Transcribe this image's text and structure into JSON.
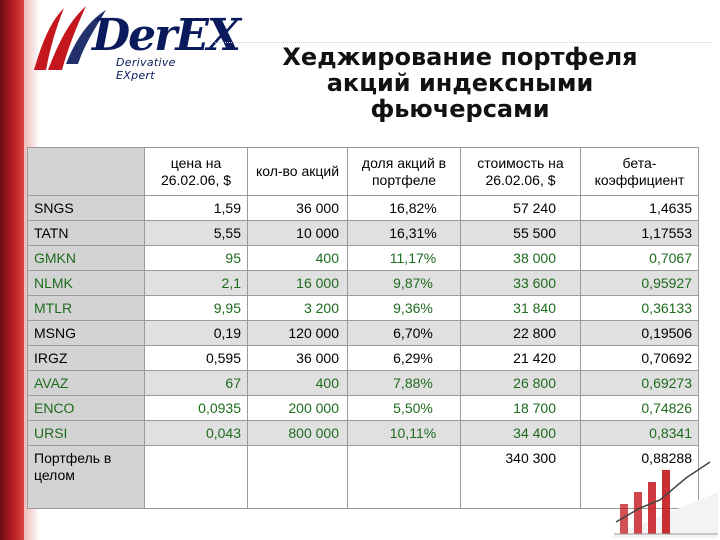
{
  "logo": {
    "brand": "DerEX",
    "tagline": "Derivative EXpert"
  },
  "title": {
    "line1": "Хеджирование портфеля",
    "line2": "акций индексными",
    "line3": "фьючерсами"
  },
  "table": {
    "headers": [
      "",
      "цена на 26.02.06, $",
      "кол-во акций",
      "доля акций в портфеле",
      "стоимость на 26.02.06, $",
      "бета-коэффициент"
    ],
    "rows": [
      {
        "name": "SNGS",
        "price": "1,59",
        "qty": "36 000",
        "share": "16,82%",
        "value": "57 240",
        "beta": "1,4635",
        "style": "white",
        "green": false
      },
      {
        "name": "TATN",
        "price": "5,55",
        "qty": "10 000",
        "share": "16,31%",
        "value": "55 500",
        "beta": "1,17553",
        "style": "gray",
        "green": false
      },
      {
        "name": "GMKN",
        "price": "95",
        "qty": "400",
        "share": "11,17%",
        "value": "38 000",
        "beta": "0,7067",
        "style": "white",
        "green": true
      },
      {
        "name": "NLMK",
        "price": "2,1",
        "qty": "16 000",
        "share": "9,87%",
        "value": "33 600",
        "beta": "0,95927",
        "style": "gray",
        "green": true
      },
      {
        "name": "MTLR",
        "price": "9,95",
        "qty": "3 200",
        "share": "9,36%",
        "value": "31 840",
        "beta": "0,36133",
        "style": "white",
        "green": true
      },
      {
        "name": "MSNG",
        "price": "0,19",
        "qty": "120 000",
        "share": "6,70%",
        "value": "22 800",
        "beta": "0,19506",
        "style": "gray",
        "green": false
      },
      {
        "name": "IRGZ",
        "price": "0,595",
        "qty": "36 000",
        "share": "6,29%",
        "value": "21 420",
        "beta": "0,70692",
        "style": "white",
        "green": false
      },
      {
        "name": "AVAZ",
        "price": "67",
        "qty": "400",
        "share": "7,88%",
        "value": "26 800",
        "beta": "0,69273",
        "style": "gray",
        "green": true
      },
      {
        "name": "ENCO",
        "price": "0,0935",
        "qty": "200 000",
        "share": "5,50%",
        "value": "18 700",
        "beta": "0,74826",
        "style": "white",
        "green": true
      },
      {
        "name": "URSI",
        "price": "0,043",
        "qty": "800 000",
        "share": "10,11%",
        "value": "34 400",
        "beta": "0,8341",
        "style": "gray",
        "green": true
      }
    ],
    "total": {
      "name": "Портфель в целом",
      "value": "340 300",
      "beta": "0,88288"
    }
  }
}
